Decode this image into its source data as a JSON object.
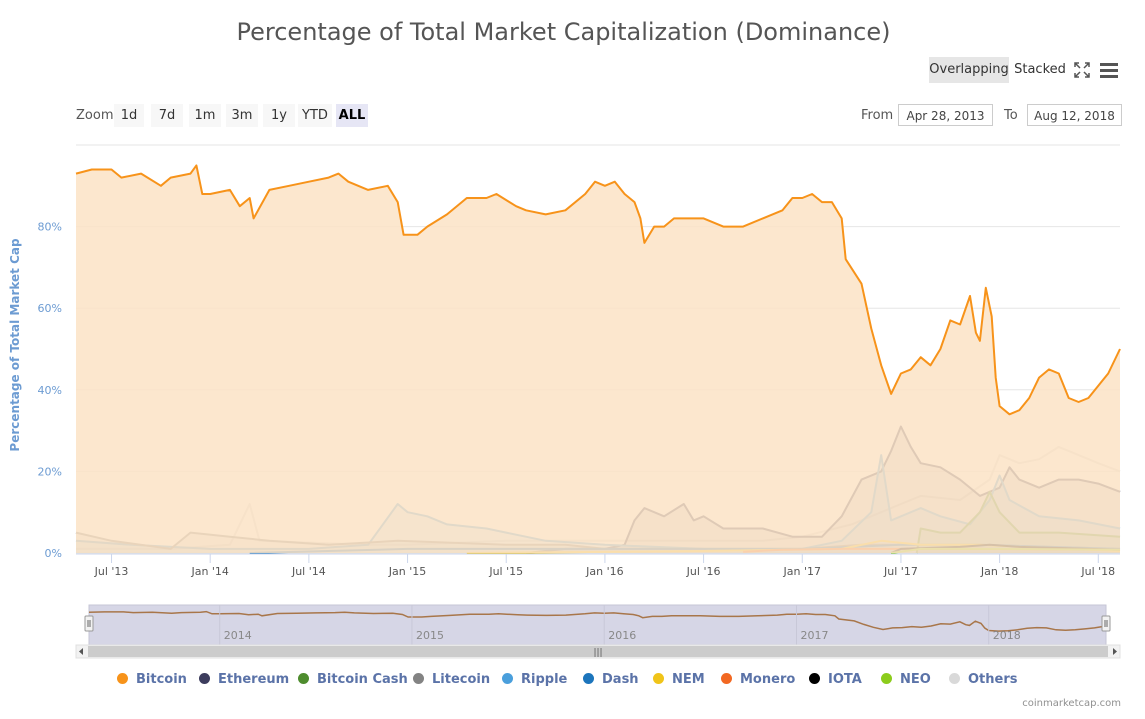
{
  "header": {
    "title": "Percentage of Total Market Capitalization (Dominance)",
    "mode_overlapping": "Overlapping",
    "mode_stacked": "Stacked"
  },
  "toolbar": {
    "zoom_label": "Zoom",
    "zoom_buttons": [
      "1d",
      "7d",
      "1m",
      "3m",
      "1y",
      "YTD",
      "ALL"
    ],
    "active_zoom": "ALL",
    "from_label": "From",
    "from_value": "Apr 28, 2013",
    "to_label": "To",
    "to_value": "Aug 12, 2018"
  },
  "credit": "coinmarketcap.com",
  "colors": {
    "bitcoin": "#f7931a",
    "bitcoin_fill": "#fbe3c6",
    "ethereum": "#3c3c5d",
    "bitcoin_cash": "#4e8c2e",
    "litecoin": "#838383",
    "ripple": "#4a9fdc",
    "dash": "#1c75bc",
    "nem": "#f0c419",
    "monero": "#f26822",
    "iota": "#000000",
    "neo": "#8ccc1c",
    "others": "#d9d9d9"
  },
  "chart_data": {
    "type": "area",
    "title": "Percentage of Total Market Capitalization (Dominance)",
    "ylabel": "Percentage of Total Market Cap",
    "ylim": [
      0,
      100
    ],
    "yticks": [
      "0%",
      "20%",
      "40%",
      "60%",
      "80%"
    ],
    "xlim": [
      2013.32,
      2018.61
    ],
    "xticks": [
      {
        "x": 2013.5,
        "label": "Jul '13"
      },
      {
        "x": 2014.0,
        "label": "Jan '14"
      },
      {
        "x": 2014.5,
        "label": "Jul '14"
      },
      {
        "x": 2015.0,
        "label": "Jan '15"
      },
      {
        "x": 2015.5,
        "label": "Jul '15"
      },
      {
        "x": 2016.0,
        "label": "Jan '16"
      },
      {
        "x": 2016.5,
        "label": "Jul '16"
      },
      {
        "x": 2017.0,
        "label": "Jan '17"
      },
      {
        "x": 2017.5,
        "label": "Jul '17"
      },
      {
        "x": 2018.0,
        "label": "Jan '18"
      },
      {
        "x": 2018.5,
        "label": "Jul '18"
      }
    ],
    "navigator_labels": [
      {
        "x": 2014.0,
        "label": "2014"
      },
      {
        "x": 2015.0,
        "label": "2015"
      },
      {
        "x": 2016.0,
        "label": "2016"
      },
      {
        "x": 2017.0,
        "label": "2017"
      },
      {
        "x": 2018.0,
        "label": "2018"
      }
    ],
    "series": [
      {
        "name": "Others",
        "color": "#d9d9d9",
        "fill": false,
        "points": [
          [
            2013.32,
            1
          ],
          [
            2013.8,
            1
          ],
          [
            2014.1,
            2
          ],
          [
            2014.2,
            12
          ],
          [
            2014.25,
            3
          ],
          [
            2014.8,
            2
          ],
          [
            2015.0,
            2
          ],
          [
            2015.5,
            3
          ],
          [
            2015.9,
            3
          ],
          [
            2016.3,
            3
          ],
          [
            2016.8,
            3
          ],
          [
            2017.0,
            4
          ],
          [
            2017.25,
            7
          ],
          [
            2017.4,
            10
          ],
          [
            2017.5,
            12
          ],
          [
            2017.6,
            14
          ],
          [
            2017.8,
            13
          ],
          [
            2017.95,
            18
          ],
          [
            2018.0,
            24
          ],
          [
            2018.1,
            22
          ],
          [
            2018.2,
            23
          ],
          [
            2018.3,
            26
          ],
          [
            2018.4,
            24
          ],
          [
            2018.5,
            22
          ],
          [
            2018.61,
            20
          ]
        ]
      },
      {
        "name": "Ethereum",
        "color": "#3c3c5d",
        "fill": true,
        "points": [
          [
            2015.6,
            0
          ],
          [
            2015.8,
            1
          ],
          [
            2016.0,
            1
          ],
          [
            2016.1,
            2
          ],
          [
            2016.15,
            8
          ],
          [
            2016.2,
            11
          ],
          [
            2016.3,
            9
          ],
          [
            2016.4,
            12
          ],
          [
            2016.45,
            8
          ],
          [
            2016.5,
            9
          ],
          [
            2016.6,
            6
          ],
          [
            2016.8,
            6
          ],
          [
            2016.95,
            4
          ],
          [
            2017.1,
            4
          ],
          [
            2017.2,
            9
          ],
          [
            2017.3,
            18
          ],
          [
            2017.4,
            20
          ],
          [
            2017.45,
            25
          ],
          [
            2017.5,
            31
          ],
          [
            2017.55,
            26
          ],
          [
            2017.6,
            22
          ],
          [
            2017.7,
            21
          ],
          [
            2017.8,
            18
          ],
          [
            2017.9,
            14
          ],
          [
            2018.0,
            16
          ],
          [
            2018.05,
            21
          ],
          [
            2018.1,
            18
          ],
          [
            2018.2,
            16
          ],
          [
            2018.3,
            18
          ],
          [
            2018.4,
            18
          ],
          [
            2018.5,
            17
          ],
          [
            2018.61,
            15
          ]
        ]
      },
      {
        "name": "Ripple",
        "color": "#4a9fdc",
        "fill": true,
        "points": [
          [
            2013.32,
            3
          ],
          [
            2013.6,
            2
          ],
          [
            2014.0,
            1
          ],
          [
            2014.5,
            1
          ],
          [
            2014.8,
            2
          ],
          [
            2014.95,
            12
          ],
          [
            2015.0,
            10
          ],
          [
            2015.1,
            9
          ],
          [
            2015.2,
            7
          ],
          [
            2015.4,
            6
          ],
          [
            2015.5,
            5
          ],
          [
            2015.7,
            3
          ],
          [
            2016.0,
            2
          ],
          [
            2016.5,
            1
          ],
          [
            2017.0,
            1
          ],
          [
            2017.2,
            3
          ],
          [
            2017.35,
            10
          ],
          [
            2017.4,
            24
          ],
          [
            2017.45,
            8
          ],
          [
            2017.6,
            11
          ],
          [
            2017.7,
            9
          ],
          [
            2017.85,
            7
          ],
          [
            2017.95,
            13
          ],
          [
            2018.0,
            19
          ],
          [
            2018.05,
            13
          ],
          [
            2018.2,
            9
          ],
          [
            2018.4,
            8
          ],
          [
            2018.61,
            6
          ]
        ]
      },
      {
        "name": "Bitcoin Cash",
        "color": "#4e8c2e",
        "fill": true,
        "points": [
          [
            2017.58,
            0
          ],
          [
            2017.6,
            6
          ],
          [
            2017.7,
            5
          ],
          [
            2017.8,
            5
          ],
          [
            2017.9,
            10
          ],
          [
            2017.95,
            15
          ],
          [
            2018.0,
            10
          ],
          [
            2018.1,
            5
          ],
          [
            2018.3,
            5
          ],
          [
            2018.61,
            4
          ]
        ]
      },
      {
        "name": "Litecoin",
        "color": "#838383",
        "fill": true,
        "points": [
          [
            2013.32,
            5
          ],
          [
            2013.5,
            3
          ],
          [
            2013.8,
            1
          ],
          [
            2013.9,
            5
          ],
          [
            2014.1,
            4
          ],
          [
            2014.3,
            3
          ],
          [
            2014.6,
            2
          ],
          [
            2014.95,
            3
          ],
          [
            2015.5,
            2
          ],
          [
            2015.8,
            2
          ],
          [
            2016.0,
            1
          ],
          [
            2016.5,
            1
          ],
          [
            2017.0,
            1
          ],
          [
            2017.3,
            2
          ],
          [
            2017.6,
            2
          ],
          [
            2017.9,
            2
          ],
          [
            2018.61,
            1
          ]
        ]
      },
      {
        "name": "Dash",
        "color": "#1c75bc",
        "fill": false,
        "points": [
          [
            2014.2,
            0
          ],
          [
            2015.0,
            1
          ],
          [
            2016.0,
            1
          ],
          [
            2017.0,
            1
          ],
          [
            2017.5,
            2
          ],
          [
            2017.9,
            2
          ],
          [
            2018.61,
            1
          ]
        ]
      },
      {
        "name": "NEM",
        "color": "#f0c419",
        "fill": false,
        "points": [
          [
            2015.3,
            0
          ],
          [
            2016.5,
            0.5
          ],
          [
            2017.2,
            1
          ],
          [
            2017.4,
            3
          ],
          [
            2017.6,
            2
          ],
          [
            2017.9,
            2
          ],
          [
            2018.1,
            1.5
          ],
          [
            2018.61,
            0.5
          ]
        ]
      },
      {
        "name": "Monero",
        "color": "#f26822",
        "fill": false,
        "points": [
          [
            2016.7,
            0.3
          ],
          [
            2016.9,
            0.8
          ],
          [
            2017.2,
            1
          ],
          [
            2017.5,
            1
          ],
          [
            2017.9,
            1
          ],
          [
            2018.61,
            0.8
          ]
        ]
      },
      {
        "name": "IOTA",
        "color": "#000000",
        "fill": false,
        "points": [
          [
            2017.45,
            0
          ],
          [
            2017.5,
            1
          ],
          [
            2017.8,
            1.5
          ],
          [
            2017.95,
            2
          ],
          [
            2018.1,
            1.5
          ],
          [
            2018.61,
            0.8
          ]
        ]
      },
      {
        "name": "NEO",
        "color": "#8ccc1c",
        "fill": false,
        "points": [
          [
            2017.45,
            0
          ],
          [
            2017.6,
            1
          ],
          [
            2017.8,
            1
          ],
          [
            2018.0,
            1
          ],
          [
            2018.61,
            0.8
          ]
        ]
      },
      {
        "name": "Bitcoin",
        "color": "#f7931a",
        "fill": true,
        "points": [
          [
            2013.32,
            93
          ],
          [
            2013.4,
            94
          ],
          [
            2013.5,
            94
          ],
          [
            2013.55,
            92
          ],
          [
            2013.65,
            93
          ],
          [
            2013.75,
            90
          ],
          [
            2013.8,
            92
          ],
          [
            2013.9,
            93
          ],
          [
            2013.93,
            95
          ],
          [
            2013.96,
            88
          ],
          [
            2014.0,
            88
          ],
          [
            2014.1,
            89
          ],
          [
            2014.15,
            85
          ],
          [
            2014.2,
            87
          ],
          [
            2014.22,
            82
          ],
          [
            2014.3,
            89
          ],
          [
            2014.4,
            90
          ],
          [
            2014.5,
            91
          ],
          [
            2014.6,
            92
          ],
          [
            2014.65,
            93
          ],
          [
            2014.7,
            91
          ],
          [
            2014.8,
            89
          ],
          [
            2014.9,
            90
          ],
          [
            2014.95,
            86
          ],
          [
            2014.98,
            78
          ],
          [
            2015.05,
            78
          ],
          [
            2015.1,
            80
          ],
          [
            2015.2,
            83
          ],
          [
            2015.3,
            87
          ],
          [
            2015.4,
            87
          ],
          [
            2015.45,
            88
          ],
          [
            2015.55,
            85
          ],
          [
            2015.6,
            84
          ],
          [
            2015.7,
            83
          ],
          [
            2015.8,
            84
          ],
          [
            2015.9,
            88
          ],
          [
            2015.95,
            91
          ],
          [
            2016.0,
            90
          ],
          [
            2016.05,
            91
          ],
          [
            2016.1,
            88
          ],
          [
            2016.15,
            86
          ],
          [
            2016.18,
            82
          ],
          [
            2016.2,
            76
          ],
          [
            2016.25,
            80
          ],
          [
            2016.3,
            80
          ],
          [
            2016.35,
            82
          ],
          [
            2016.4,
            82
          ],
          [
            2016.5,
            82
          ],
          [
            2016.6,
            80
          ],
          [
            2016.7,
            80
          ],
          [
            2016.8,
            82
          ],
          [
            2016.9,
            84
          ],
          [
            2016.95,
            87
          ],
          [
            2017.0,
            87
          ],
          [
            2017.05,
            88
          ],
          [
            2017.1,
            86
          ],
          [
            2017.15,
            86
          ],
          [
            2017.2,
            82
          ],
          [
            2017.22,
            72
          ],
          [
            2017.3,
            66
          ],
          [
            2017.35,
            55
          ],
          [
            2017.4,
            46
          ],
          [
            2017.45,
            39
          ],
          [
            2017.5,
            44
          ],
          [
            2017.55,
            45
          ],
          [
            2017.6,
            48
          ],
          [
            2017.65,
            46
          ],
          [
            2017.7,
            50
          ],
          [
            2017.75,
            57
          ],
          [
            2017.8,
            56
          ],
          [
            2017.85,
            63
          ],
          [
            2017.88,
            54
          ],
          [
            2017.9,
            52
          ],
          [
            2017.93,
            65
          ],
          [
            2017.96,
            58
          ],
          [
            2017.98,
            43
          ],
          [
            2018.0,
            36
          ],
          [
            2018.05,
            34
          ],
          [
            2018.1,
            35
          ],
          [
            2018.15,
            38
          ],
          [
            2018.2,
            43
          ],
          [
            2018.25,
            45
          ],
          [
            2018.3,
            44
          ],
          [
            2018.35,
            38
          ],
          [
            2018.4,
            37
          ],
          [
            2018.45,
            38
          ],
          [
            2018.5,
            41
          ],
          [
            2018.55,
            44
          ],
          [
            2018.61,
            50
          ]
        ]
      }
    ],
    "legend": [
      "Bitcoin",
      "Ethereum",
      "Bitcoin Cash",
      "Litecoin",
      "Ripple",
      "Dash",
      "NEM",
      "Monero",
      "IOTA",
      "NEO",
      "Others"
    ]
  }
}
